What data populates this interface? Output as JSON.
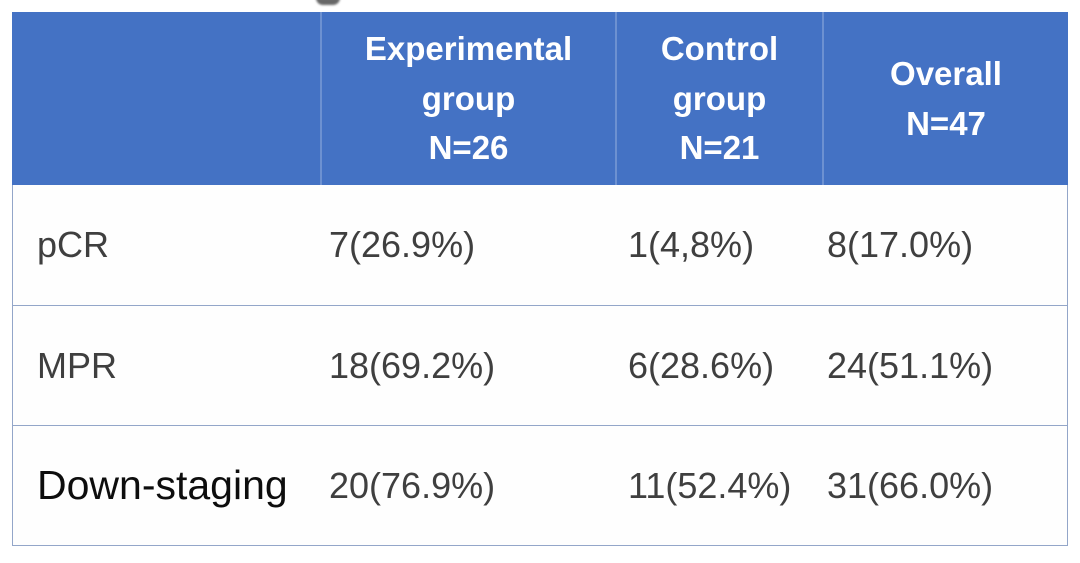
{
  "colors": {
    "header_bg": "#4472C4",
    "header_text": "#ffffff",
    "border": "#93A6C9",
    "body_text": "#3F3F3F",
    "emphasis_text": "#0d0d0d",
    "background": "#ffffff"
  },
  "header": {
    "blank": "",
    "experimental_lines": [
      "Experimental",
      "group",
      "N=26"
    ],
    "control_lines": [
      "Control",
      "group",
      "N=21"
    ],
    "overall_lines": [
      "Overall",
      "N=47"
    ]
  },
  "rows": [
    {
      "label": "pCR",
      "experimental": "7(26.9%)",
      "control": "1(4,8%)",
      "overall": "8(17.0%)"
    },
    {
      "label": "MPR",
      "experimental": "18(69.2%)",
      "control": "6(28.6%)",
      "overall": "24(51.1%)"
    },
    {
      "label": "Down-staging",
      "experimental": "20(76.9%)",
      "control": "11(52.4%)",
      "overall": "31(66.0%)"
    }
  ],
  "chart_data": {
    "type": "table",
    "columns": [
      "",
      "Experimental group N=26",
      "Control group N=21",
      "Overall N=47"
    ],
    "rows": [
      [
        "pCR",
        "7(26.9%)",
        "1(4,8%)",
        "8(17.0%)"
      ],
      [
        "MPR",
        "18(69.2%)",
        "6(28.6%)",
        "24(51.1%)"
      ],
      [
        "Down-staging",
        "20(76.9%)",
        "11(52.4%)",
        "31(66.0%)"
      ]
    ],
    "group_sizes": {
      "experimental": 26,
      "control": 21,
      "overall": 47
    },
    "counts": {
      "pCR": {
        "experimental": 7,
        "control": 1,
        "overall": 8
      },
      "MPR": {
        "experimental": 18,
        "control": 6,
        "overall": 24
      },
      "Down-staging": {
        "experimental": 20,
        "control": 11,
        "overall": 31
      }
    }
  }
}
